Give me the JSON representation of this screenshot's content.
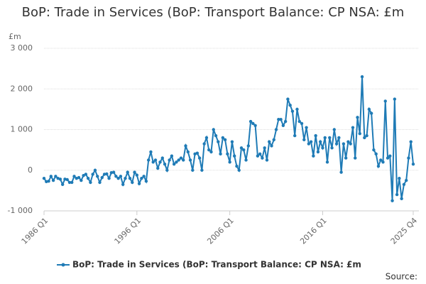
{
  "chart_data": {
    "type": "line",
    "title": "BoP: Trade in Services (BoP: Transport Balance: CP NSA: £m",
    "y_label": "£m",
    "source": "Source:",
    "categories": [
      "1986 Q1",
      null,
      null,
      null,
      null,
      null,
      null,
      null,
      null,
      null,
      null,
      null,
      null,
      null,
      null,
      null,
      null,
      null,
      null,
      null,
      null,
      null,
      null,
      null,
      null,
      null,
      null,
      null,
      null,
      null,
      null,
      null,
      null,
      null,
      null,
      null,
      null,
      null,
      null,
      null,
      "1996 Q1",
      null,
      null,
      null,
      null,
      null,
      null,
      null,
      null,
      null,
      null,
      null,
      null,
      null,
      null,
      null,
      null,
      null,
      null,
      null,
      null,
      null,
      null,
      null,
      null,
      null,
      null,
      null,
      null,
      null,
      null,
      null,
      null,
      null,
      null,
      null,
      null,
      null,
      null,
      null,
      "2006 Q1",
      null,
      null,
      null,
      null,
      null,
      null,
      null,
      null,
      null,
      null,
      null,
      null,
      null,
      null,
      null,
      null,
      null,
      null,
      null,
      null,
      null,
      null,
      null,
      null,
      null,
      null,
      null,
      null,
      null,
      null,
      null,
      null,
      null,
      null,
      null,
      null,
      null,
      null,
      null,
      "2016 Q1",
      null,
      null,
      null,
      null,
      null,
      null,
      null,
      null,
      null,
      null,
      null,
      null,
      null,
      null,
      null,
      null,
      null,
      null,
      null,
      null,
      null,
      null,
      null,
      null,
      null,
      null,
      null,
      null,
      null,
      null,
      null,
      null,
      null,
      null,
      null,
      null,
      null,
      null,
      "2025 Q4"
    ],
    "series": [
      {
        "name": "BoP: Trade in Services (BoP: Transport Balance: CP NSA: £m",
        "color": "#1f7bb6",
        "values": [
          -200,
          -280,
          -270,
          -150,
          -250,
          -150,
          -200,
          -220,
          -350,
          -220,
          -230,
          -300,
          -300,
          -150,
          -200,
          -180,
          -250,
          -130,
          -100,
          -200,
          -300,
          -100,
          0,
          -150,
          -300,
          -180,
          -100,
          -90,
          -200,
          -60,
          -50,
          -150,
          -200,
          -150,
          -350,
          -200,
          -50,
          -200,
          -300,
          -50,
          -120,
          -330,
          -200,
          -150,
          -270,
          250,
          450,
          200,
          250,
          50,
          200,
          300,
          150,
          0,
          250,
          350,
          150,
          200,
          250,
          300,
          250,
          600,
          450,
          250,
          0,
          400,
          420,
          300,
          0,
          650,
          800,
          500,
          450,
          1000,
          850,
          700,
          400,
          800,
          750,
          400,
          200,
          700,
          350,
          100,
          0,
          550,
          500,
          250,
          600,
          1200,
          1150,
          1100,
          350,
          400,
          300,
          550,
          250,
          700,
          600,
          750,
          1000,
          1250,
          1250,
          1100,
          1200,
          1750,
          1600,
          1450,
          850,
          1500,
          1200,
          1150,
          750,
          1050,
          650,
          700,
          350,
          850,
          450,
          700,
          550,
          800,
          200,
          800,
          550,
          1000,
          650,
          800,
          -50,
          650,
          300,
          700,
          650,
          1050,
          300,
          1300,
          900,
          2300,
          800,
          850,
          1500,
          1400,
          500,
          400,
          100,
          250,
          200,
          1700,
          300,
          350,
          -750,
          1750,
          -600,
          -200,
          -700,
          -350,
          -250,
          300,
          700,
          150
        ]
      }
    ],
    "ylim": [
      -1000,
      3000
    ],
    "yticks": [
      {
        "value": -1000,
        "label": "-1 000"
      },
      0,
      {
        "value": 1000,
        "label": "1 000"
      },
      {
        "value": 2000,
        "label": "2 000"
      },
      {
        "value": 3000,
        "label": "3 000"
      }
    ],
    "grid": true
  }
}
